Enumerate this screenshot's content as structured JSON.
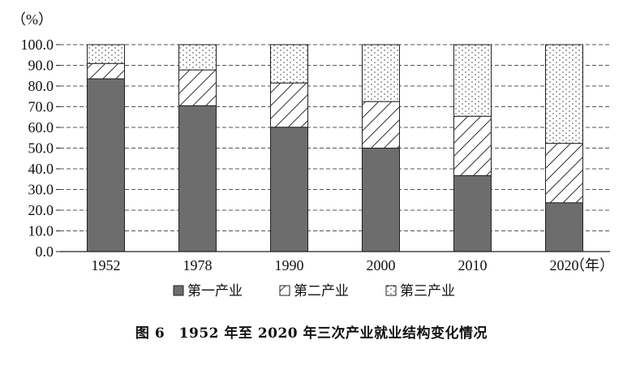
{
  "chart_data": {
    "type": "bar",
    "stacked": true,
    "title": "图 6　1952 年至 2020 年三次产业就业结构变化情况",
    "ylabel": "（%）",
    "xlabel": "（年）",
    "categories": [
      "1952",
      "1978",
      "1990",
      "2000",
      "2010",
      "2020"
    ],
    "ylim": [
      0,
      100
    ],
    "yticks": [
      "0.0",
      "10.0",
      "20.0",
      "30.0",
      "40.0",
      "50.0",
      "60.0",
      "70.0",
      "80.0",
      "90.0",
      "100.0"
    ],
    "grid": true,
    "legend_position": "bottom",
    "series": [
      {
        "name": "第一产业",
        "values": [
          83.5,
          70.5,
          60.1,
          50.0,
          36.7,
          23.6
        ],
        "pattern": "solid",
        "color": "#6d6d6d"
      },
      {
        "name": "第二产业",
        "values": [
          7.4,
          17.3,
          21.4,
          22.5,
          28.7,
          28.7
        ],
        "pattern": "diagonal-hatch",
        "color": "#333333"
      },
      {
        "name": "第三产业",
        "values": [
          9.1,
          12.2,
          18.5,
          27.5,
          34.6,
          47.7
        ],
        "pattern": "dot-dash",
        "color": "#333333"
      }
    ]
  }
}
